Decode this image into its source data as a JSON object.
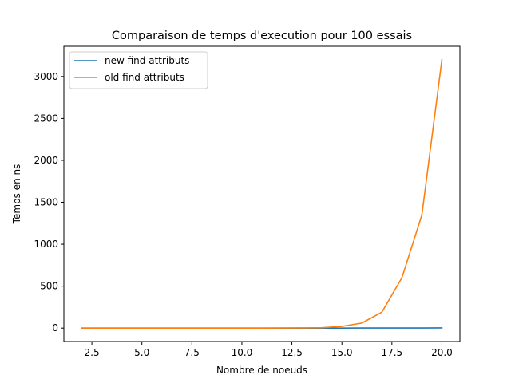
{
  "chart_data": {
    "type": "line",
    "title": "Comparaison de temps d'execution pour 100 essais",
    "xlabel": "Nombre de noeuds",
    "ylabel": "Temps en ns",
    "xlim": [
      1.1,
      20.9
    ],
    "ylim": [
      -160,
      3360
    ],
    "xticks": [
      2.5,
      5.0,
      7.5,
      10.0,
      12.5,
      15.0,
      17.5,
      20.0
    ],
    "xtick_labels": [
      "2.5",
      "5.0",
      "7.5",
      "10.0",
      "12.5",
      "15.0",
      "17.5",
      "20.0"
    ],
    "yticks": [
      0,
      500,
      1000,
      1500,
      2000,
      2500,
      3000
    ],
    "ytick_labels": [
      "0",
      "500",
      "1000",
      "1500",
      "2000",
      "2500",
      "3000"
    ],
    "grid": false,
    "legend_position": "top-left",
    "x": [
      2,
      3,
      4,
      5,
      6,
      7,
      8,
      9,
      10,
      11,
      12,
      13,
      14,
      15,
      16,
      17,
      18,
      19,
      20
    ],
    "series": [
      {
        "name": "new find attributs",
        "color": "#1f77b4",
        "values": [
          0,
          0,
          0,
          0,
          0,
          0,
          0,
          0,
          0,
          0,
          0,
          0,
          0,
          0,
          1,
          1,
          1,
          1,
          2
        ]
      },
      {
        "name": "old find attributs",
        "color": "#ff7f0e",
        "values": [
          0,
          0,
          0,
          0,
          0,
          0,
          0,
          0,
          0,
          0,
          1,
          2,
          5,
          20,
          60,
          190,
          600,
          1350,
          3200
        ]
      }
    ]
  }
}
